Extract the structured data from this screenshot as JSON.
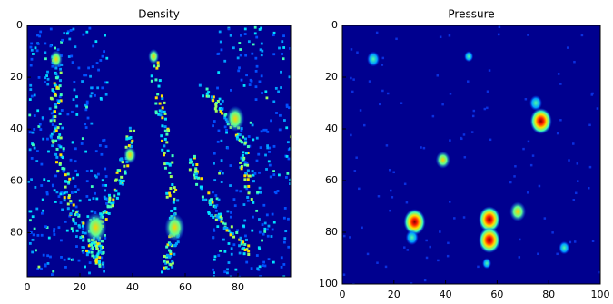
{
  "chart_data": [
    {
      "type": "heatmap",
      "title": "Density",
      "xlim": [
        0,
        100
      ],
      "ylim": [
        0,
        97
      ],
      "xticks": [
        0,
        20,
        40,
        60,
        80
      ],
      "yticks": [
        0,
        20,
        40,
        60,
        80
      ],
      "y_inverted": true
    },
    {
      "type": "heatmap",
      "title": "Pressure",
      "xlim": [
        0,
        100
      ],
      "ylim": [
        0,
        100
      ],
      "xticks": [
        0,
        20,
        40,
        60,
        80,
        100
      ],
      "yticks": [
        0,
        20,
        40,
        60,
        80,
        100
      ],
      "y_inverted": true
    }
  ]
}
